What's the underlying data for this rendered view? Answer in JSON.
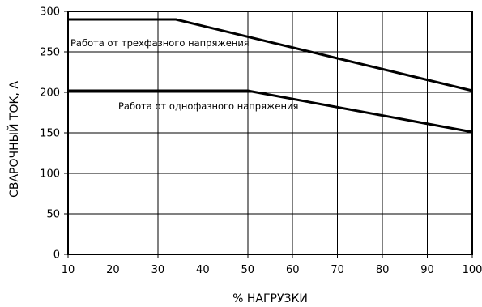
{
  "chart_data": {
    "type": "line",
    "title": "",
    "xlabel": "% НАГРУЗКИ",
    "ylabel": "СВАРОЧНЫЙ ТОК, А",
    "xlim": [
      10,
      100
    ],
    "ylim": [
      0,
      300
    ],
    "x_ticks": [
      "10",
      "20",
      "30",
      "40",
      "50",
      "60",
      "70",
      "80",
      "90",
      "100"
    ],
    "y_ticks": [
      "0",
      "50",
      "100",
      "150",
      "200",
      "250",
      "300"
    ],
    "grid": true,
    "series": [
      {
        "name": "Работа от трехфазного напряжения",
        "x": [
          10,
          34,
          100
        ],
        "y": [
          290,
          290,
          202
        ]
      },
      {
        "name": "Работа от однофазного напряжения",
        "x": [
          10,
          50,
          100
        ],
        "y": [
          202,
          202,
          151
        ]
      }
    ]
  }
}
